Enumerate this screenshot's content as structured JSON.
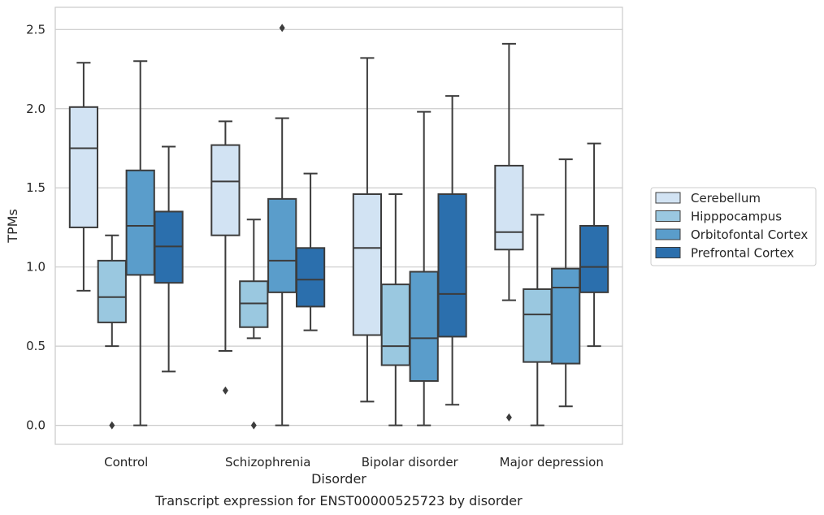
{
  "chart_data": {
    "type": "box",
    "xlabel": "Disorder",
    "ylabel": "TPMs",
    "caption": "Transcript expression for ENST00000525723 by disorder",
    "ylim": [
      -0.12,
      2.64
    ],
    "yticks": [
      0.0,
      0.5,
      1.0,
      1.5,
      2.0,
      2.5
    ],
    "ytick_labels": [
      "0.0",
      "0.5",
      "1.0",
      "1.5",
      "2.0",
      "2.5"
    ],
    "grid": "horizontal",
    "legend_position": "right",
    "categories": [
      "Control",
      "Schizophrenia",
      "Bipolar disorder",
      "Major depression"
    ],
    "series": [
      {
        "name": "Cerebellum",
        "color": "#d2e3f3",
        "boxes": [
          {
            "whisker_low": 0.85,
            "q1": 1.25,
            "median": 1.75,
            "q3": 2.01,
            "whisker_high": 2.29,
            "outliers": []
          },
          {
            "whisker_low": 0.47,
            "q1": 1.2,
            "median": 1.54,
            "q3": 1.77,
            "whisker_high": 1.92,
            "outliers": [
              0.22
            ]
          },
          {
            "whisker_low": 0.15,
            "q1": 0.57,
            "median": 1.12,
            "q3": 1.46,
            "whisker_high": 2.32,
            "outliers": []
          },
          {
            "whisker_low": 0.79,
            "q1": 1.11,
            "median": 1.22,
            "q3": 1.64,
            "whisker_high": 2.41,
            "outliers": [
              0.05
            ]
          }
        ]
      },
      {
        "name": "Hipppocampus",
        "color": "#9ac8e0",
        "boxes": [
          {
            "whisker_low": 0.5,
            "q1": 0.65,
            "median": 0.81,
            "q3": 1.04,
            "whisker_high": 1.2,
            "outliers": [
              0.0
            ]
          },
          {
            "whisker_low": 0.55,
            "q1": 0.62,
            "median": 0.77,
            "q3": 0.91,
            "whisker_high": 1.3,
            "outliers": [
              0.0
            ]
          },
          {
            "whisker_low": 0.0,
            "q1": 0.38,
            "median": 0.5,
            "q3": 0.89,
            "whisker_high": 1.46,
            "outliers": []
          },
          {
            "whisker_low": 0.0,
            "q1": 0.4,
            "median": 0.7,
            "q3": 0.86,
            "whisker_high": 1.33,
            "outliers": []
          }
        ]
      },
      {
        "name": "Orbitofontal Cortex",
        "color": "#5a9dcb",
        "boxes": [
          {
            "whisker_low": 0.0,
            "q1": 0.95,
            "median": 1.26,
            "q3": 1.61,
            "whisker_high": 2.3,
            "outliers": []
          },
          {
            "whisker_low": 0.0,
            "q1": 0.84,
            "median": 1.04,
            "q3": 1.43,
            "whisker_high": 1.94,
            "outliers": [
              2.51
            ]
          },
          {
            "whisker_low": 0.0,
            "q1": 0.28,
            "median": 0.55,
            "q3": 0.97,
            "whisker_high": 1.98,
            "outliers": []
          },
          {
            "whisker_low": 0.12,
            "q1": 0.39,
            "median": 0.87,
            "q3": 0.99,
            "whisker_high": 1.68,
            "outliers": []
          }
        ]
      },
      {
        "name": "Prefrontal Cortex",
        "color": "#2b6fad",
        "boxes": [
          {
            "whisker_low": 0.34,
            "q1": 0.9,
            "median": 1.13,
            "q3": 1.35,
            "whisker_high": 1.76,
            "outliers": []
          },
          {
            "whisker_low": 0.6,
            "q1": 0.75,
            "median": 0.92,
            "q3": 1.12,
            "whisker_high": 1.59,
            "outliers": []
          },
          {
            "whisker_low": 0.13,
            "q1": 0.56,
            "median": 0.83,
            "q3": 1.46,
            "whisker_high": 2.08,
            "outliers": []
          },
          {
            "whisker_low": 0.5,
            "q1": 0.84,
            "median": 1.0,
            "q3": 1.26,
            "whisker_high": 1.78,
            "outliers": []
          }
        ]
      }
    ]
  }
}
